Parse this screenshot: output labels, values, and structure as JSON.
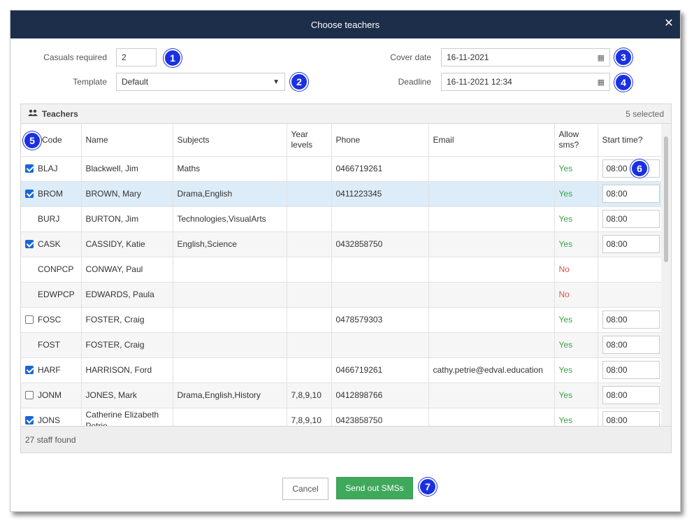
{
  "dialog": {
    "title": "Choose teachers"
  },
  "form": {
    "casuals_label": "Casuals required",
    "casuals_value": "2",
    "template_label": "Template",
    "template_value": "Default",
    "cover_date_label": "Cover date",
    "cover_date_value": "16-11-2021",
    "deadline_label": "Deadline",
    "deadline_value": "16-11-2021 12:34"
  },
  "badges": [
    "1",
    "2",
    "3",
    "4",
    "5",
    "6",
    "7"
  ],
  "teachers_panel": {
    "title": "Teachers",
    "selected_count": "5 selected",
    "footer": "27 staff found",
    "columns": [
      "Code",
      "Name",
      "Subjects",
      "Year levels",
      "Phone",
      "Email",
      "Allow sms?",
      "Start time?"
    ],
    "rows": [
      {
        "checkbox": "checked",
        "code": "BLAJ",
        "name": "Blackwell, Jim",
        "subjects": "Maths",
        "year_levels": "",
        "phone": "0466719261",
        "email": "",
        "allow_sms": "Yes",
        "start_time": "08:00"
      },
      {
        "checkbox": "checked",
        "code": "BROM",
        "name": "BROWN, Mary",
        "subjects": "Drama,English",
        "year_levels": "",
        "phone": "0411223345",
        "email": "",
        "allow_sms": "Yes",
        "start_time": "08:00"
      },
      {
        "checkbox": "none",
        "code": "BURJ",
        "name": "BURTON, Jim",
        "subjects": "Technologies,VisualArts",
        "year_levels": "",
        "phone": "",
        "email": "",
        "allow_sms": "Yes",
        "start_time": "08:00"
      },
      {
        "checkbox": "checked",
        "code": "CASK",
        "name": "CASSIDY, Katie",
        "subjects": "English,Science",
        "year_levels": "",
        "phone": "0432858750",
        "email": "",
        "allow_sms": "Yes",
        "start_time": "08:00"
      },
      {
        "checkbox": "none",
        "code": "CONPCP",
        "name": "CONWAY, Paul",
        "subjects": "",
        "year_levels": "",
        "phone": "",
        "email": "",
        "allow_sms": "No",
        "start_time": ""
      },
      {
        "checkbox": "none",
        "code": "EDWPCP",
        "name": "EDWARDS, Paula",
        "subjects": "",
        "year_levels": "",
        "phone": "",
        "email": "",
        "allow_sms": "No",
        "start_time": ""
      },
      {
        "checkbox": "unchecked",
        "code": "FOSC",
        "name": "FOSTER, Craig",
        "subjects": "",
        "year_levels": "",
        "phone": "0478579303",
        "email": "",
        "allow_sms": "Yes",
        "start_time": "08:00"
      },
      {
        "checkbox": "none",
        "code": "FOST",
        "name": "FOSTER, Craig",
        "subjects": "",
        "year_levels": "",
        "phone": "",
        "email": "",
        "allow_sms": "Yes",
        "start_time": "08:00"
      },
      {
        "checkbox": "checked",
        "code": "HARF",
        "name": "HARRISON, Ford",
        "subjects": "",
        "year_levels": "",
        "phone": "0466719261",
        "email": "cathy.petrie@edval.education",
        "allow_sms": "Yes",
        "start_time": "08:00"
      },
      {
        "checkbox": "unchecked",
        "code": "JONM",
        "name": "JONES, Mark",
        "subjects": "Drama,English,History",
        "year_levels": "7,8,9,10",
        "phone": "0412898766",
        "email": "",
        "allow_sms": "Yes",
        "start_time": "08:00"
      },
      {
        "checkbox": "checked",
        "code": "JONS",
        "name": "Catherine Elizabeth Petrie",
        "subjects": "",
        "year_levels": "7,8,9,10",
        "phone": "0423858750",
        "email": "",
        "allow_sms": "Yes",
        "start_time": "08:00"
      }
    ]
  },
  "buttons": {
    "cancel": "Cancel",
    "send": "Send out SMSs"
  },
  "colors": {
    "title_bar": "#1c2e4a",
    "badge": "#1a31e0",
    "send_button": "#3fa95b",
    "yes": "#3aa14a",
    "no": "#d9534f",
    "selected_row": "#dcecf8"
  },
  "icons": {
    "close": "close-icon",
    "calendar": "calendar-icon",
    "users": "users-icon",
    "dropdown": "chevron-down-icon"
  }
}
